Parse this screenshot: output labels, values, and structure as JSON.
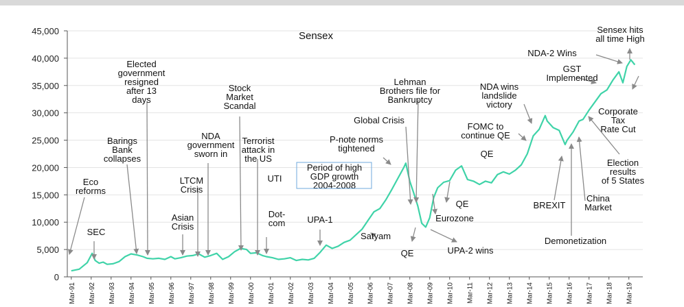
{
  "chart_data": {
    "type": "line",
    "title": "Sensex",
    "xlabel": "",
    "ylabel": "",
    "ylim": [
      0,
      45000
    ],
    "yticks": [
      0,
      5000,
      10000,
      15000,
      20000,
      25000,
      30000,
      35000,
      40000,
      45000
    ],
    "ytick_labels": [
      "0",
      "5,000",
      "10,000",
      "15,000",
      "20,000",
      "25,000",
      "30,000",
      "35,000",
      "40,000",
      "45,000"
    ],
    "x_tick_labels": [
      "Mar-91",
      "Mar-92",
      "Mar-93",
      "Mar-94",
      "Mar-95",
      "Mar-96",
      "Mar-97",
      "Mar-98",
      "Mar-99",
      "Mar-00",
      "Mar-01",
      "Mar-02",
      "Mar-03",
      "Mar-04",
      "Mar-05",
      "Mar-06",
      "Mar-07",
      "Mar-08",
      "Mar-09",
      "Mar-10",
      "Mar-11",
      "Mar-12",
      "Mar-13",
      "Mar-14",
      "Mar-15",
      "Mar-16",
      "Mar-17",
      "Mar-18",
      "Mar-19"
    ],
    "grid": "horizontal",
    "line_color": "#3fd3a8",
    "series": [
      {
        "x": [
          1991.2,
          1991.6,
          1992.0,
          1992.25,
          1992.4,
          1992.6,
          1992.8,
          1993.0,
          1993.3,
          1993.6,
          1993.9,
          1994.2,
          1994.5,
          1994.8,
          1995.0,
          1995.3,
          1995.6,
          1995.9,
          1996.2,
          1996.4,
          1996.7,
          1997.0,
          1997.3,
          1997.6,
          1997.9,
          1998.2,
          1998.5,
          1998.8,
          1999.1,
          1999.4,
          1999.7,
          2000.0,
          2000.2,
          2000.5,
          2000.8,
          2001.0,
          2001.3,
          2001.6,
          2001.9,
          2002.2,
          2002.5,
          2002.8,
          2003.1,
          2003.4,
          2003.7,
          2004.0,
          2004.3,
          2004.6,
          2004.9,
          2005.2,
          2005.5,
          2005.8,
          2006.1,
          2006.4,
          2006.7,
          2007.0,
          2007.3,
          2007.6,
          2007.9,
          2008.0,
          2008.2,
          2008.4,
          2008.6,
          2008.8,
          2009.0,
          2009.2,
          2009.4,
          2009.6,
          2009.9,
          2010.2,
          2010.5,
          2010.8,
          2011.1,
          2011.4,
          2011.7,
          2012.0,
          2012.3,
          2012.6,
          2012.9,
          2013.2,
          2013.5,
          2013.8,
          2014.1,
          2014.4,
          2014.7,
          2015.0,
          2015.1,
          2015.4,
          2015.7,
          2016.0,
          2016.1,
          2016.4,
          2016.7,
          2016.9,
          2017.2,
          2017.5,
          2017.8,
          2018.1,
          2018.4,
          2018.7,
          2018.9,
          2019.1,
          2019.3,
          2019.5
        ],
        "values": [
          1100,
          1400,
          2600,
          4300,
          3000,
          2500,
          2700,
          2300,
          2400,
          2800,
          3700,
          4200,
          4000,
          3700,
          3400,
          3300,
          3400,
          3200,
          3700,
          3300,
          3500,
          3800,
          3900,
          4200,
          3600,
          3900,
          4300,
          3200,
          3700,
          4600,
          5200,
          5000,
          4300,
          4400,
          3900,
          3700,
          3500,
          3200,
          3300,
          3500,
          3000,
          3200,
          3100,
          3400,
          4500,
          5800,
          5200,
          5600,
          6300,
          6700,
          7700,
          8700,
          10300,
          11900,
          12500,
          14100,
          16000,
          18000,
          20000,
          20800,
          17500,
          15300,
          13000,
          9800,
          9100,
          10800,
          14500,
          16300,
          17300,
          17600,
          19500,
          20300,
          17800,
          17500,
          16900,
          17500,
          17200,
          18700,
          19200,
          18800,
          19500,
          20500,
          22500,
          25800,
          27000,
          29500,
          28500,
          27300,
          26800,
          24200,
          25000,
          26500,
          28500,
          28800,
          30500,
          32000,
          33500,
          34200,
          36000,
          37500,
          35500,
          38500,
          39700,
          38800
        ],
        "stroke_width": 2.2
      }
    ],
    "annotations": [
      {
        "text": "Sensex hits all time High",
        "lines": [
          "Sensex hits",
          "all time High"
        ]
      },
      {
        "text": "NDA-2 Wins",
        "lines": [
          "NDA-2 Wins"
        ]
      },
      {
        "text": "GST Implemented",
        "lines": [
          "GST",
          "Implemented"
        ]
      },
      {
        "text": "Corporate Tax Rate Cut",
        "lines": [
          "Corporate",
          "Tax",
          "Rate Cut"
        ]
      },
      {
        "text": "Election results of 5 States",
        "lines": [
          "Election",
          "results",
          "of 5 States"
        ]
      },
      {
        "text": "China Market",
        "lines": [
          "China",
          "Market"
        ]
      },
      {
        "text": "Demonetization",
        "lines": [
          "Demonetization"
        ]
      },
      {
        "text": "BREXIT",
        "lines": [
          "BREXIT"
        ]
      },
      {
        "text": "NDA wins landslide victory",
        "lines": [
          "NDA wins",
          "landslide",
          "victory"
        ]
      },
      {
        "text": "FOMC to continue QE",
        "lines": [
          "FOMC to",
          "continue QE"
        ]
      },
      {
        "text": "QE",
        "lines": [
          "QE"
        ]
      },
      {
        "text": "Lehman Brothers file for Bankruptcy",
        "lines": [
          "Lehman",
          "Brothers file for",
          "Bankruptcy"
        ]
      },
      {
        "text": "Global Crisis",
        "lines": [
          "Global Crisis"
        ]
      },
      {
        "text": "P-note norms tightened",
        "lines": [
          "P-note norms",
          "tightened"
        ]
      },
      {
        "text": "QE",
        "lines": [
          "QE"
        ]
      },
      {
        "text": "Eurozone",
        "lines": [
          "Eurozone"
        ]
      },
      {
        "text": "UPA-2 wins",
        "lines": [
          "UPA-2 wins"
        ]
      },
      {
        "text": "QE",
        "lines": [
          "QE"
        ]
      },
      {
        "text": "Satyam",
        "lines": [
          "Satyam"
        ]
      },
      {
        "text": "Period of high GDP growth 2004-2008",
        "lines": [
          "Period of high",
          "GDP growth",
          "2004-2008"
        ]
      },
      {
        "text": "UPA-1",
        "lines": [
          "UPA-1"
        ]
      },
      {
        "text": "UTI",
        "lines": [
          "UTI"
        ]
      },
      {
        "text": "Dot-com",
        "lines": [
          "Dot-",
          "com"
        ]
      },
      {
        "text": "Terrorist attack in the US",
        "lines": [
          "Terrorist",
          "attack in",
          "the US"
        ]
      },
      {
        "text": "Stock Market Scandal",
        "lines": [
          "Stock",
          "Market",
          "Scandal"
        ]
      },
      {
        "text": "NDA government sworn in",
        "lines": [
          "NDA",
          "government",
          "sworn in"
        ]
      },
      {
        "text": "LTCM Crisis",
        "lines": [
          "LTCM",
          "Crisis"
        ]
      },
      {
        "text": "Asian Crisis",
        "lines": [
          "Asian",
          "Crisis"
        ]
      },
      {
        "text": "Elected government resigned after 13 days",
        "lines": [
          "Elected",
          "government",
          "resigned",
          "after 13",
          "days"
        ]
      },
      {
        "text": "Barings Bank collapses",
        "lines": [
          "Barings",
          "Bank",
          "collapses"
        ]
      },
      {
        "text": "Eco reforms",
        "lines": [
          "Eco",
          "reforms"
        ]
      },
      {
        "text": "SEC",
        "lines": [
          "SEC"
        ]
      }
    ]
  }
}
